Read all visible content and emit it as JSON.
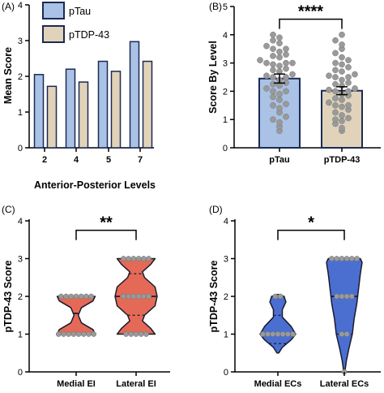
{
  "colors": {
    "ptau": "#a9c2e6",
    "ptdp": "#e0d3b9",
    "bar_edge": "#1b2a55",
    "point": "#9a9a9a",
    "violin_c": "#e46a57",
    "violin_d": "#4a6fd0",
    "violin_edge": "#1a1a2e"
  },
  "chart_data": [
    {
      "panel": "(A)",
      "type": "bar",
      "ylabel": "Mean Score",
      "xlabel": "Anterior-Posterior Levels",
      "categories": [
        "2",
        "4",
        "5",
        "7"
      ],
      "series": [
        {
          "name": "pTau",
          "values": [
            2.05,
            2.2,
            2.42,
            2.97
          ]
        },
        {
          "name": "pTDP-43",
          "values": [
            1.72,
            1.84,
            2.14,
            2.42
          ]
        }
      ],
      "ylim": [
        0,
        4
      ],
      "yticks": [
        "0",
        "1",
        "2",
        "3",
        "4"
      ],
      "legend": "top-left"
    },
    {
      "panel": "(B)",
      "type": "bar",
      "ylabel": "Score By Level",
      "xlabel": "",
      "categories": [
        "pTau",
        "pTDP-43"
      ],
      "values": [
        2.45,
        2.02
      ],
      "error": [
        0.16,
        0.14
      ],
      "significance": "****",
      "ylim": [
        0,
        5
      ],
      "yticks": [
        "0",
        "1",
        "2",
        "3",
        "4",
        "5"
      ],
      "points": [
        [
          0.6,
          0.75,
          0.9,
          1.0,
          1.1,
          1.25,
          1.4,
          1.5,
          1.55,
          1.7,
          1.8,
          1.9,
          2.0,
          2.0,
          2.1,
          2.2,
          2.25,
          2.3,
          2.4,
          2.5,
          2.5,
          2.55,
          2.6,
          2.7,
          2.75,
          2.8,
          2.9,
          2.95,
          3.0,
          3.0,
          3.0,
          3.1,
          3.2,
          3.25,
          3.3,
          3.4,
          3.5,
          3.5,
          3.6,
          3.7,
          3.8,
          3.9,
          4.0
        ],
        [
          0.6,
          0.7,
          0.85,
          0.95,
          1.0,
          1.05,
          1.15,
          1.25,
          1.35,
          1.45,
          1.5,
          1.5,
          1.6,
          1.7,
          1.75,
          1.85,
          1.9,
          2.0,
          2.0,
          2.05,
          2.1,
          2.2,
          2.25,
          2.3,
          2.4,
          2.5,
          2.5,
          2.55,
          2.6,
          2.7,
          2.75,
          2.85,
          2.95,
          3.0,
          3.1,
          3.2,
          3.35,
          3.5,
          3.65,
          3.8,
          4.0
        ]
      ]
    },
    {
      "panel": "(C)",
      "type": "violin",
      "ylabel": "pTDP-43 Score",
      "xlabel": "",
      "categories": [
        "Medial EI",
        "Lateral EI"
      ],
      "significance": "**",
      "ylim": [
        0,
        4
      ],
      "yticks": [
        "0",
        "1",
        "2",
        "3",
        "4"
      ],
      "points": [
        [
          1,
          1,
          1,
          1,
          1,
          1,
          1,
          1,
          2,
          2,
          2,
          2,
          2,
          2,
          2
        ],
        [
          1,
          1,
          1,
          1,
          1,
          2,
          2,
          2,
          2,
          2,
          2,
          3,
          3,
          3,
          3,
          3,
          3
        ]
      ],
      "quartiles": [
        [
          1,
          1.55,
          2
        ],
        [
          1.5,
          2,
          2.6
        ]
      ],
      "violins": [
        [
          [
            1,
            0.9
          ],
          [
            1.12,
            0.8
          ],
          [
            1.3,
            0.25
          ],
          [
            1.5,
            0.1
          ],
          [
            1.7,
            0.25
          ],
          [
            1.88,
            0.8
          ],
          [
            2,
            0.9
          ]
        ],
        [
          [
            1,
            0.9
          ],
          [
            1.15,
            0.7
          ],
          [
            1.35,
            0.3
          ],
          [
            1.5,
            0.4
          ],
          [
            1.75,
            0.9
          ],
          [
            2,
            1.0
          ],
          [
            2.25,
            0.9
          ],
          [
            2.5,
            0.4
          ],
          [
            2.65,
            0.3
          ],
          [
            2.85,
            0.7
          ],
          [
            3,
            0.9
          ]
        ]
      ]
    },
    {
      "panel": "(D)",
      "type": "violin",
      "ylabel": "pTDP-43 Score",
      "xlabel": "",
      "categories": [
        "Medial ECs",
        "Lateral ECs"
      ],
      "significance": "*",
      "ylim": [
        0,
        4
      ],
      "yticks": [
        "0",
        "1",
        "2",
        "3",
        "4"
      ],
      "points": [
        [
          1,
          1,
          1,
          1,
          1,
          1,
          1,
          2,
          2
        ],
        [
          0,
          1,
          1,
          2,
          2,
          2,
          2,
          3,
          3,
          3,
          3,
          3,
          3
        ]
      ],
      "quartiles": [
        [
          0.75,
          1,
          1.5
        ],
        [
          1,
          2,
          3
        ]
      ],
      "violins": [
        [
          [
            0.5,
            0.05
          ],
          [
            0.65,
            0.25
          ],
          [
            0.85,
            0.75
          ],
          [
            1,
            1.0
          ],
          [
            1.2,
            0.75
          ],
          [
            1.45,
            0.25
          ],
          [
            1.65,
            0.25
          ],
          [
            1.85,
            0.45
          ],
          [
            2,
            0.35
          ],
          [
            2.05,
            0.05
          ]
        ],
        [
          [
            0,
            0.03
          ],
          [
            0.3,
            0.12
          ],
          [
            0.6,
            0.25
          ],
          [
            1,
            0.45
          ],
          [
            1.4,
            0.55
          ],
          [
            1.8,
            0.7
          ],
          [
            2.2,
            0.8
          ],
          [
            2.6,
            0.9
          ],
          [
            2.9,
            1.0
          ],
          [
            3,
            0.9
          ],
          [
            3.02,
            0.05
          ]
        ]
      ]
    }
  ]
}
